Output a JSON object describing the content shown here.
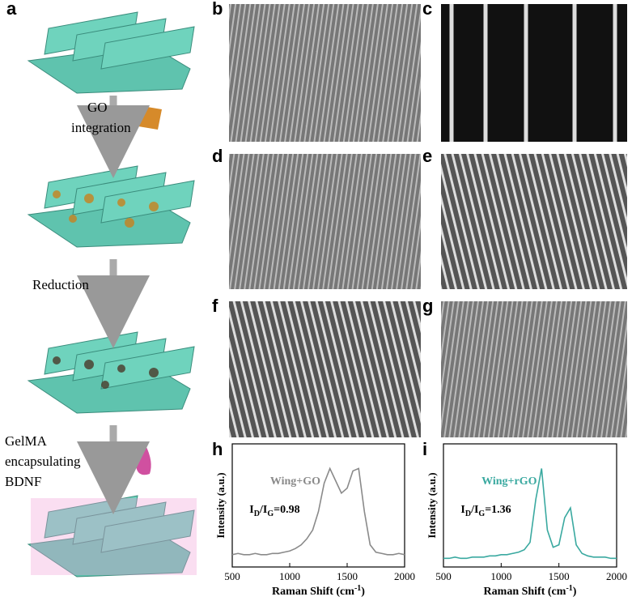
{
  "panel_labels": [
    "a",
    "b",
    "c",
    "d",
    "e",
    "f",
    "g",
    "h",
    "i"
  ],
  "panel_a": {
    "steps": [
      [
        "GO",
        "integration"
      ],
      [
        "Reduction"
      ],
      [
        "GelMA",
        "encapsulating",
        "BDNF"
      ]
    ]
  },
  "chart_data": [
    {
      "type": "line",
      "xlabel": [
        "Raman Shift (cm",
        "-1",
        ")"
      ],
      "ylabel": "Intensity (a.u.)",
      "x": [
        500,
        550,
        600,
        650,
        700,
        750,
        800,
        850,
        900,
        950,
        1000,
        1050,
        1100,
        1150,
        1200,
        1250,
        1300,
        1350,
        1400,
        1450,
        1500,
        1550,
        1600,
        1650,
        1700,
        1750,
        1800,
        1850,
        1900,
        1950,
        2000
      ],
      "series": [
        {
          "name": "Wing+GO",
          "color": "#8a8a8a",
          "values": [
            0.1,
            0.11,
            0.1,
            0.1,
            0.11,
            0.1,
            0.1,
            0.11,
            0.11,
            0.12,
            0.13,
            0.15,
            0.18,
            0.23,
            0.3,
            0.45,
            0.68,
            0.8,
            0.7,
            0.6,
            0.64,
            0.78,
            0.8,
            0.45,
            0.18,
            0.12,
            0.11,
            0.1,
            0.1,
            0.11,
            0.1
          ]
        }
      ],
      "annotation": [
        "I",
        "D",
        "/I",
        "G",
        "=0.98"
      ],
      "xlim": [
        500,
        2000
      ],
      "xticks": [
        500,
        1000,
        1500,
        2000
      ],
      "ylim": [
        0,
        1
      ]
    },
    {
      "type": "line",
      "xlabel": [
        "Raman Shift (cm",
        "-1",
        ")"
      ],
      "ylabel": "Intensity (a.u.)",
      "x": [
        500,
        550,
        600,
        650,
        700,
        750,
        800,
        850,
        900,
        950,
        1000,
        1050,
        1100,
        1150,
        1200,
        1250,
        1300,
        1350,
        1400,
        1450,
        1500,
        1550,
        1600,
        1650,
        1700,
        1750,
        1800,
        1850,
        1900,
        1950,
        2000
      ],
      "series": [
        {
          "name": "Wing+rGO",
          "color": "#3aa9a0",
          "values": [
            0.07,
            0.07,
            0.08,
            0.07,
            0.07,
            0.08,
            0.08,
            0.08,
            0.09,
            0.09,
            0.1,
            0.1,
            0.11,
            0.12,
            0.14,
            0.2,
            0.55,
            0.8,
            0.3,
            0.16,
            0.18,
            0.4,
            0.48,
            0.18,
            0.11,
            0.09,
            0.08,
            0.08,
            0.08,
            0.07,
            0.07
          ]
        }
      ],
      "annotation": [
        "I",
        "D",
        "/I",
        "G",
        "=1.36"
      ],
      "xlim": [
        500,
        2000
      ],
      "xticks": [
        500,
        1000,
        1500,
        2000
      ],
      "ylim": [
        0,
        1
      ]
    }
  ]
}
